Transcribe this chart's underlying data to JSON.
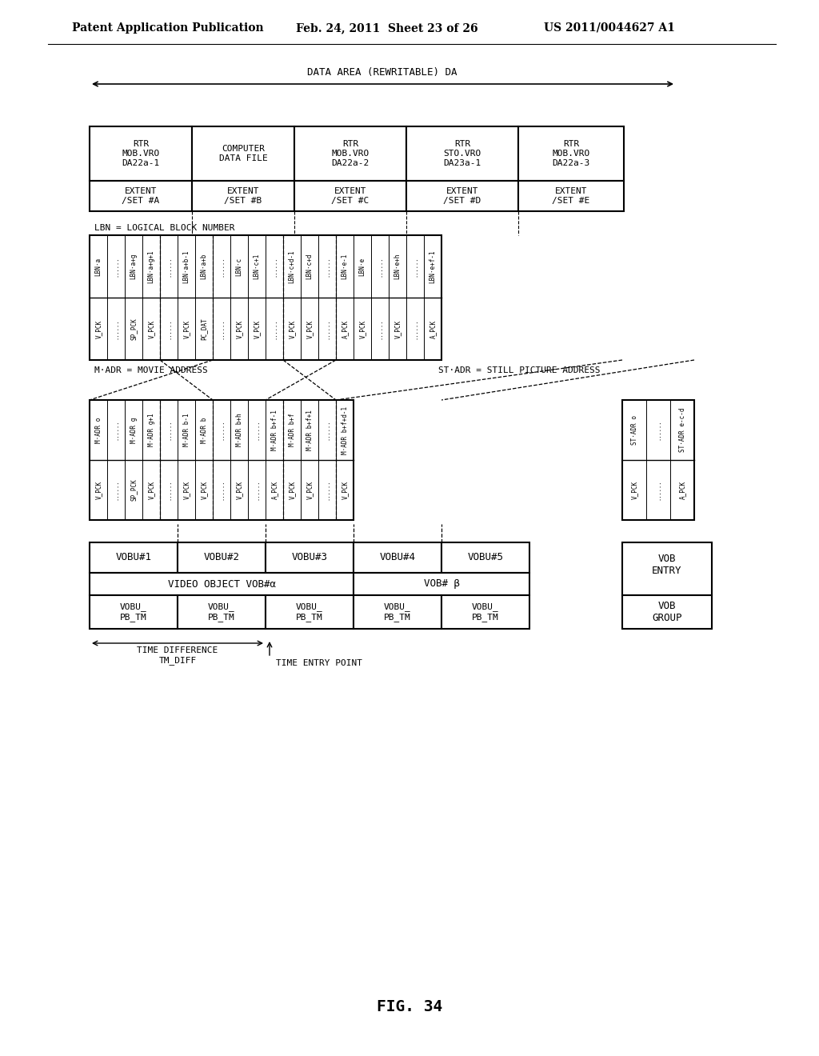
{
  "bg_color": "#ffffff",
  "header_text": [
    "Patent Application Publication",
    "Feb. 24, 2011  Sheet 23 of 26",
    "US 2011/0044627 A1"
  ],
  "figure_label": "FIG. 34",
  "top_arrow_label": "DATA AREA (REWRITABLE) DA",
  "top_boxes": [
    {
      "label": "RTR\nMOB.VRO\nDA22a-1",
      "extent": "EXTENT\n/SET #A"
    },
    {
      "label": "COMPUTER\nDATA FILE",
      "extent": "EXTENT\n/SET #B"
    },
    {
      "label": "RTR\nMOB.VRO\nDA22a-2",
      "extent": "EXTENT\n/SET #C"
    },
    {
      "label": "RTR\nSTO.VRO\nDA23a-1",
      "extent": "EXTENT\n/SET #D"
    },
    {
      "label": "RTR\nMOB.VRO\nDA22a-3",
      "extent": "EXTENT\n/SET #E"
    }
  ],
  "lbn_label": "LBN = LOGICAL BLOCK NUMBER",
  "lbn_rows": [
    [
      "V_PCK",
      "LBN·a"
    ],
    [
      "------",
      "------"
    ],
    [
      "SP_PCK",
      "LBN·a+g"
    ],
    [
      "V_PCK",
      "LBN·a+g+1"
    ],
    [
      "------",
      "------"
    ],
    [
      "V_PCK",
      "LBN·a+b-1"
    ],
    [
      "PC_DAT",
      "LBN·a+b"
    ],
    [
      "------",
      "------"
    ],
    [
      "V_PCK",
      "LBN·c"
    ],
    [
      "V_PCK",
      "LBN·c+1"
    ],
    [
      "------",
      "------"
    ],
    [
      "V_PCK",
      "LBN·c+d-1"
    ],
    [
      "V_PCK",
      "LBN·c+d"
    ],
    [
      "------",
      "------"
    ],
    [
      "A_PCK",
      "LBN·e-1"
    ],
    [
      "V_PCK",
      "LBN·e"
    ],
    [
      "------",
      "------"
    ],
    [
      "V_PCK",
      "LBN·e+h"
    ],
    [
      "------",
      "------"
    ],
    [
      "A_PCK",
      "LBN·e+f-1"
    ]
  ],
  "madr_label": "M·ADR = MOVIE ADDRESS",
  "stadr_label": "ST·ADR = STILL PICTURE ADDRESS",
  "madr_rows": [
    [
      "V_PCK",
      "M·ADR o"
    ],
    [
      "------",
      "------"
    ],
    [
      "SP_PCK",
      "M·ADR g"
    ],
    [
      "V_PCK",
      "M·ADR g+1"
    ],
    [
      "------",
      "------"
    ],
    [
      "V_PCK",
      "M·ADR b-1"
    ],
    [
      "V_PCK",
      "M·ADR b"
    ],
    [
      "------",
      "------"
    ],
    [
      "V_PCK",
      "M·ADR b+h"
    ],
    [
      "------",
      "------"
    ],
    [
      "A_PCK",
      "M·ADR b+f-1"
    ],
    [
      "V_PCK",
      "M·ADR b+f"
    ],
    [
      "V_PCK",
      "M·ADR b+f+1"
    ],
    [
      "------",
      "------"
    ],
    [
      "V_PCK",
      "M·ADR b+f+d-1"
    ]
  ],
  "stadr_rows": [
    [
      "V_PCK",
      "ST·ADR o"
    ],
    [
      "------",
      "------"
    ],
    [
      "A_PCK",
      "ST·ADR e-c-d"
    ]
  ],
  "vobu_boxes": [
    "VOBU#1",
    "VOBU#2",
    "VOBU#3",
    "VOBU#4",
    "VOBU#5"
  ],
  "vob_label1": "VIDEO OBJECT VOB#α",
  "vob_label2": "VOB# β",
  "vobu_pb": [
    "VOBU_\nPB_TM",
    "VOBU_\nPB_TM",
    "VOBU_\nPB_TM",
    "VOBU_\nPB_TM",
    "VOBU_\nPB_TM"
  ],
  "vob_entry": "VOB\nENTRY",
  "vob_group": "VOB\nGROUP",
  "time_diff_label": "TIME DIFFERENCE\nTM_DIFF",
  "time_entry_label": "TIME ENTRY POINT"
}
